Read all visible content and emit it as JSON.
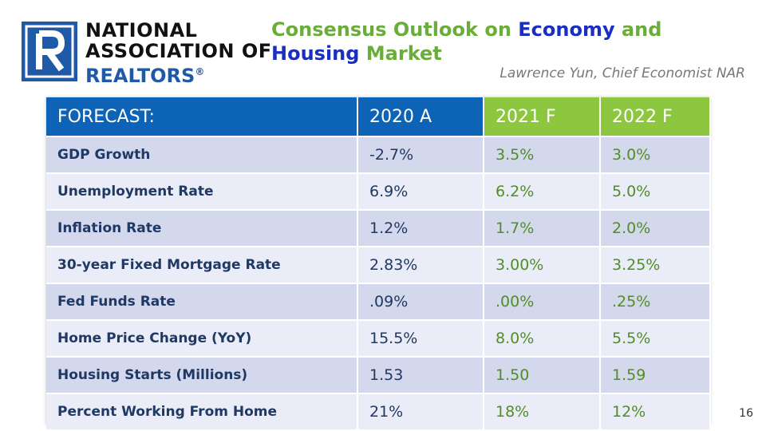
{
  "logo": {
    "line1": "NATIONAL",
    "line2": "ASSOCIATION OF",
    "line3": "REALTORS",
    "registered": "®",
    "icon": "realtor-r-block-logo"
  },
  "title": {
    "part1": "Consensus Outlook on ",
    "part2": "Economy",
    "part3": " and",
    "part4": "Housing",
    "part5": " Market"
  },
  "subtitle": "Lawrence Yun, Chief Economist NAR",
  "colors": {
    "header_blue": "#0d63b5",
    "header_green": "#8dc63f",
    "title_green": "#6aad3b",
    "title_blue": "#1a2fbf",
    "forecast_green": "#4f8f22",
    "label_navy": "#1f3864"
  },
  "table": {
    "headers": [
      "FORECAST:",
      "2020 A",
      "2021 F",
      "2022 F"
    ],
    "rows": [
      [
        "GDP Growth",
        "-2.7%",
        "3.5%",
        "3.0%"
      ],
      [
        "Unemployment Rate",
        "6.9%",
        "6.2%",
        "5.0%"
      ],
      [
        "Inflation Rate",
        "1.2%",
        "1.7%",
        "2.0%"
      ],
      [
        "30-year Fixed Mortgage Rate",
        "2.83%",
        "3.00%",
        "3.25%"
      ],
      [
        "Fed Funds Rate",
        ".09%",
        ".00%",
        ".25%"
      ],
      [
        "Home Price Change (YoY)",
        "15.5%",
        "8.0%",
        "5.5%"
      ],
      [
        "Housing Starts (Millions)",
        "1.53",
        "1.50",
        "1.59"
      ],
      [
        "Percent Working From Home",
        "21%",
        "18%",
        "12%"
      ]
    ]
  },
  "page_number": "16"
}
